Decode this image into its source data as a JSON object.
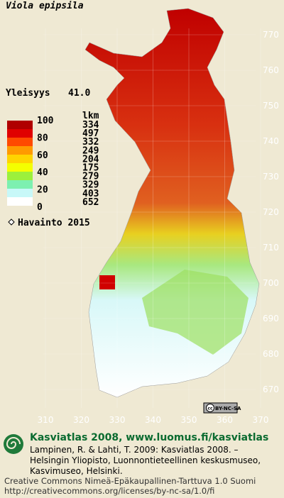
{
  "title": "Viola epipsila",
  "frequency": {
    "label": "Yleisyys",
    "value": "41.0"
  },
  "legend": {
    "scale_labels": [
      100,
      80,
      60,
      40,
      20,
      0
    ],
    "count_header": "lkm",
    "counts": [
      334,
      497,
      332,
      249,
      204,
      175,
      279,
      329,
      403,
      652
    ],
    "colors": [
      "#b00000",
      "#e00000",
      "#ff4a00",
      "#ff9a00",
      "#ffd400",
      "#f4ff00",
      "#9cf03c",
      "#7df0b0",
      "#c8f8f8",
      "#ffffff"
    ],
    "observation": "Havainto 2015"
  },
  "map": {
    "yticks": [
      770,
      760,
      750,
      740,
      730,
      720,
      710,
      700,
      690,
      680,
      670
    ],
    "xticks": [
      310,
      320,
      330,
      340,
      350,
      360,
      370
    ]
  },
  "badge": {
    "cc": "cc",
    "license": "BY-NC-SA"
  },
  "footer": {
    "atlas": "Kasviatlas 2008, www.luomus.fi/kasviatlas",
    "citation": [
      "Lampinen, R. & Lahti, T. 2009: Kasviatlas 2008. –",
      "Helsingin Yliopisto, Luonnontieteellinen keskusmuseo,",
      "Kasvimuseo, Helsinki."
    ],
    "license": [
      "Creative Commons Nimeä-Epäkaupallinen-Tarttuva 1.0 Suomi",
      "http://creativecommons.org/licenses/by-nc-sa/1.0/fi"
    ]
  }
}
